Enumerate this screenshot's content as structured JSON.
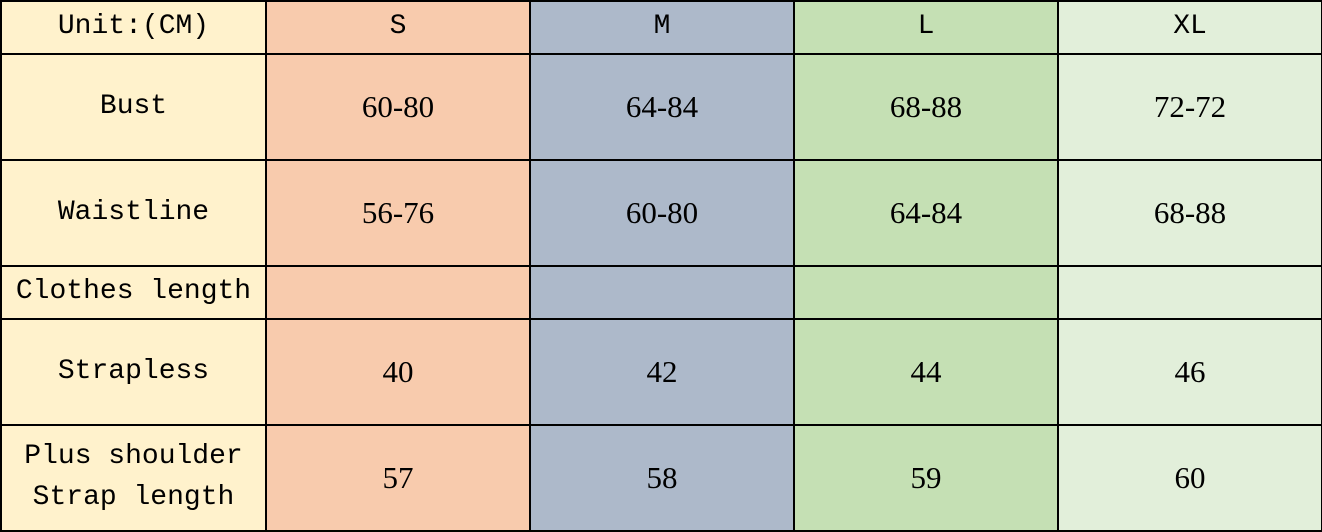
{
  "colors": {
    "label": "#FFF2CC",
    "S": "#F8CBAD",
    "M": "#ADB9CA",
    "L": "#C5E0B4",
    "XL": "#E2EFDA",
    "border": "#000000"
  },
  "header": [
    "Unit:(CM)",
    "S",
    "M",
    "L",
    "XL"
  ],
  "rows": [
    {
      "label": "Bust",
      "values": [
        "60-80",
        "64-84",
        "68-88",
        "72-72"
      ]
    },
    {
      "label": "Waistline",
      "values": [
        "56-76",
        "60-80",
        "64-84",
        "68-88"
      ]
    },
    {
      "label": "Clothes length",
      "values": [
        "",
        "",
        "",
        ""
      ]
    },
    {
      "label": "Strapless",
      "values": [
        "40",
        "42",
        "44",
        "46"
      ]
    },
    {
      "label": "Plus shoulder\nStrap length",
      "values": [
        "57",
        "58",
        "59",
        "60"
      ]
    }
  ]
}
